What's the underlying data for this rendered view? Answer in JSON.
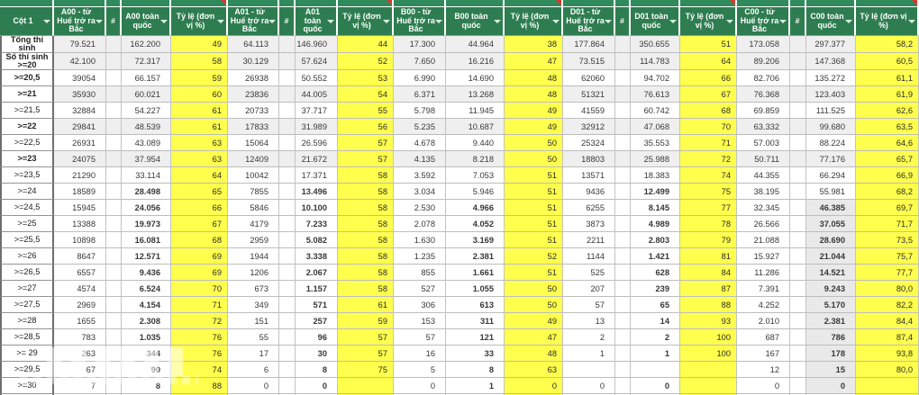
{
  "table": {
    "columns": [
      {
        "key": "label",
        "label": "Cột 1",
        "type": "label",
        "filter": true,
        "comment": false
      },
      {
        "key": "a00_hue",
        "label": "A00 - từ Huế trở ra Bắc",
        "type": "num",
        "filter": true,
        "comment": false
      },
      {
        "key": "a00_hash",
        "label": "#",
        "type": "hash",
        "filter": false,
        "comment": false
      },
      {
        "key": "a00_tq",
        "label": "A00 toàn quốc",
        "type": "num",
        "filter": true,
        "comment": false
      },
      {
        "key": "a00_tyle",
        "label": "Tỷ lệ (đơn vị %)",
        "type": "tyle",
        "filter": true,
        "comment": true
      },
      {
        "key": "a01_hue",
        "label": "A01 - từ Huế trở ra Bắc",
        "type": "num",
        "filter": true,
        "comment": false
      },
      {
        "key": "a01_hash",
        "label": "#",
        "type": "hash",
        "filter": false,
        "comment": false
      },
      {
        "key": "a01_tq",
        "label": "A01 toàn quốc",
        "type": "num",
        "filter": true,
        "comment": false
      },
      {
        "key": "a01_tyle",
        "label": "Tỷ lệ (đơn vị %)",
        "type": "tyle",
        "filter": true,
        "comment": true
      },
      {
        "key": "b00_hue",
        "label": "B00 - từ Huế trở ra Bắc",
        "type": "num",
        "filter": true,
        "comment": false
      },
      {
        "key": "b00_tq",
        "label": "B00 toàn quốc",
        "type": "num",
        "filter": true,
        "comment": false
      },
      {
        "key": "b00_tyle",
        "label": "Tỷ lệ (đơn vị %)",
        "type": "tyle",
        "filter": true,
        "comment": true
      },
      {
        "key": "d01_hue",
        "label": "D01 - từ Huế trở ra Bắc",
        "type": "num",
        "filter": true,
        "comment": false
      },
      {
        "key": "d01_hash",
        "label": "#",
        "type": "hash",
        "filter": false,
        "comment": false
      },
      {
        "key": "d01_tq",
        "label": "D01 toàn quốc",
        "type": "num",
        "filter": true,
        "comment": false
      },
      {
        "key": "d01_tyle",
        "label": "Tỷ lệ (đơn vị %)",
        "type": "tyle",
        "filter": true,
        "comment": true
      },
      {
        "key": "c00_hue",
        "label": "C00 - từ Huế trở ra Bắc",
        "type": "num",
        "filter": true,
        "comment": false
      },
      {
        "key": "c00_hash",
        "label": "#",
        "type": "hash",
        "filter": false,
        "comment": false
      },
      {
        "key": "c00_tq",
        "label": "C00 toàn quốc",
        "type": "num",
        "filter": true,
        "comment": false
      },
      {
        "key": "c00_tyle",
        "label": "Tỷ lệ (đơn vị %)",
        "type": "tyle",
        "filter": true,
        "comment": true
      }
    ],
    "rows": [
      [
        "Tổng thí sinh",
        "79.521",
        "",
        "162.200",
        "49",
        "64.113",
        "",
        "146.960",
        "44",
        "17.300",
        "44.964",
        "38",
        "177.864",
        "",
        "350.655",
        "51",
        "173.058",
        "",
        "297.377",
        "58,2"
      ],
      [
        "Số thí sinh >=20",
        "42.100",
        "",
        "72.317",
        "58",
        "30.129",
        "",
        "57.624",
        "52",
        "7.650",
        "16.216",
        "47",
        "73.515",
        "",
        "114.783",
        "64",
        "89.206",
        "",
        "147.368",
        "60,5"
      ],
      [
        ">=20,5",
        "39054",
        "",
        "66.157",
        "59",
        "26938",
        "",
        "50.552",
        "53",
        "6.990",
        "14.690",
        "48",
        "62060",
        "",
        "94.702",
        "66",
        "82.706",
        "",
        "135.272",
        "61,1"
      ],
      [
        ">=21",
        "35930",
        "",
        "60.021",
        "60",
        "23836",
        "",
        "44.005",
        "54",
        "6.371",
        "13.268",
        "48",
        "51321",
        "",
        "76.613",
        "67",
        "76.368",
        "",
        "123.403",
        "61,9"
      ],
      [
        ">=21,5",
        "32884",
        "",
        "54.227",
        "61",
        "20733",
        "",
        "37.717",
        "55",
        "5.798",
        "11.945",
        "49",
        "41559",
        "",
        "60.742",
        "68",
        "69.859",
        "",
        "111.525",
        "62,6"
      ],
      [
        ">=22",
        "29841",
        "",
        "48.539",
        "61",
        "17833",
        "",
        "31.989",
        "56",
        "5.235",
        "10.687",
        "49",
        "32912",
        "",
        "47.068",
        "70",
        "63.332",
        "",
        "99.680",
        "63,5"
      ],
      [
        ">=22,5",
        "26931",
        "",
        "43.089",
        "63",
        "15064",
        "",
        "26.596",
        "57",
        "4.678",
        "9.440",
        "50",
        "25324",
        "",
        "35.553",
        "71",
        "57.003",
        "",
        "88.224",
        "64,6"
      ],
      [
        ">=23",
        "24075",
        "",
        "37.954",
        "63",
        "12409",
        "",
        "21.672",
        "57",
        "4.135",
        "8.218",
        "50",
        "18803",
        "",
        "25.988",
        "72",
        "50.711",
        "",
        "77.176",
        "65,7"
      ],
      [
        ">=23,5",
        "21290",
        "",
        "33.114",
        "64",
        "10042",
        "",
        "17.371",
        "58",
        "3.592",
        "7.053",
        "51",
        "13571",
        "",
        "18.383",
        "74",
        "44.355",
        "",
        "66.294",
        "66,9"
      ],
      [
        ">=24",
        "18589",
        "",
        "28.498",
        "65",
        "7855",
        "",
        "13.496",
        "58",
        "3.034",
        "5.946",
        "51",
        "9436",
        "",
        "12.499",
        "75",
        "38.195",
        "",
        "55.981",
        "68,2"
      ],
      [
        ">=24,5",
        "15945",
        "",
        "24.056",
        "66",
        "5846",
        "",
        "10.100",
        "58",
        "2.530",
        "4.966",
        "51",
        "6255",
        "",
        "8.145",
        "77",
        "32.345",
        "",
        "46.385",
        "69,7"
      ],
      [
        ">=25",
        "13388",
        "",
        "19.973",
        "67",
        "4179",
        "",
        "7.233",
        "58",
        "2.078",
        "4.052",
        "51",
        "3873",
        "",
        "4.989",
        "78",
        "26.566",
        "",
        "37.055",
        "71,7"
      ],
      [
        ">=25,5",
        "10898",
        "",
        "16.081",
        "68",
        "2959",
        "",
        "5.082",
        "58",
        "1.630",
        "3.169",
        "51",
        "2211",
        "",
        "2.803",
        "79",
        "21.088",
        "",
        "28.690",
        "73,5"
      ],
      [
        ">=26",
        "8647",
        "",
        "12.571",
        "69",
        "1944",
        "",
        "3.338",
        "58",
        "1.235",
        "2.381",
        "52",
        "1144",
        "",
        "1.421",
        "81",
        "15.927",
        "",
        "21.044",
        "75,7"
      ],
      [
        ">=26,5",
        "6557",
        "",
        "9.436",
        "69",
        "1206",
        "",
        "2.067",
        "58",
        "855",
        "1.661",
        "51",
        "525",
        "",
        "628",
        "84",
        "11.286",
        "",
        "14.521",
        "77,7"
      ],
      [
        ">=27",
        "4574",
        "",
        "6.524",
        "70",
        "673",
        "",
        "1.157",
        "58",
        "527",
        "1.055",
        "50",
        "207",
        "",
        "239",
        "87",
        "7.391",
        "",
        "9.243",
        "80,0"
      ],
      [
        ">=27,5",
        "2969",
        "",
        "4.154",
        "71",
        "349",
        "",
        "571",
        "61",
        "306",
        "613",
        "50",
        "57",
        "",
        "65",
        "88",
        "4.252",
        "",
        "5.170",
        "82,2"
      ],
      [
        ">=28",
        "1655",
        "",
        "2.308",
        "72",
        "151",
        "",
        "257",
        "59",
        "153",
        "311",
        "49",
        "13",
        "",
        "14",
        "93",
        "2.010",
        "",
        "2.381",
        "84,4"
      ],
      [
        ">=28,5",
        "783",
        "",
        "1.035",
        "76",
        "55",
        "",
        "96",
        "57",
        "57",
        "121",
        "47",
        "2",
        "",
        "2",
        "100",
        "687",
        "",
        "786",
        "87,4"
      ],
      [
        ">= 29",
        "263",
        "",
        "344",
        "76",
        "17",
        "",
        "30",
        "57",
        "16",
        "33",
        "48",
        "1",
        "",
        "1",
        "100",
        "167",
        "",
        "178",
        "93,8"
      ],
      [
        ">=29,5",
        "67",
        "",
        "90",
        "74",
        "6",
        "",
        "8",
        "75",
        "5",
        "8",
        "63",
        "",
        "",
        "",
        "",
        "12",
        "",
        "15",
        "80,0"
      ],
      [
        ">=30",
        "7",
        "",
        "8",
        "88",
        "0",
        "",
        "0",
        "",
        "0",
        "1",
        "0",
        "0",
        "",
        "0",
        "",
        "0",
        "",
        "0",
        ""
      ]
    ]
  },
  "colors": {
    "header_green": "#2e7d50",
    "strip_green": "#2f8a5c",
    "highlight_yellow": "#ffff4d",
    "comment_red": "#d6392b"
  }
}
